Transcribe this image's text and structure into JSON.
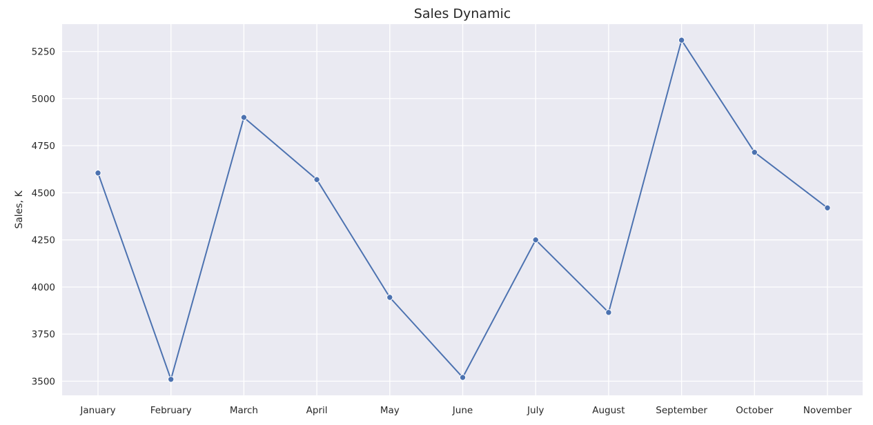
{
  "chart_data": {
    "type": "line",
    "title": "Sales Dynamic",
    "xlabel": "",
    "ylabel": "Sales, K",
    "categories": [
      "January",
      "February",
      "March",
      "April",
      "May",
      "June",
      "July",
      "August",
      "September",
      "October",
      "November"
    ],
    "values": [
      4605,
      3510,
      4900,
      4570,
      3945,
      3520,
      4250,
      3865,
      5310,
      4715,
      4420
    ],
    "yticks": [
      3500,
      3750,
      4000,
      4250,
      4500,
      4750,
      5000,
      5250
    ],
    "ylim": [
      3425,
      5395
    ],
    "grid": true,
    "markers": true,
    "legend": "none",
    "colors": {
      "line": "#4c72b0",
      "plot_background": "#eaeaf2",
      "grid": "#ffffff"
    }
  }
}
